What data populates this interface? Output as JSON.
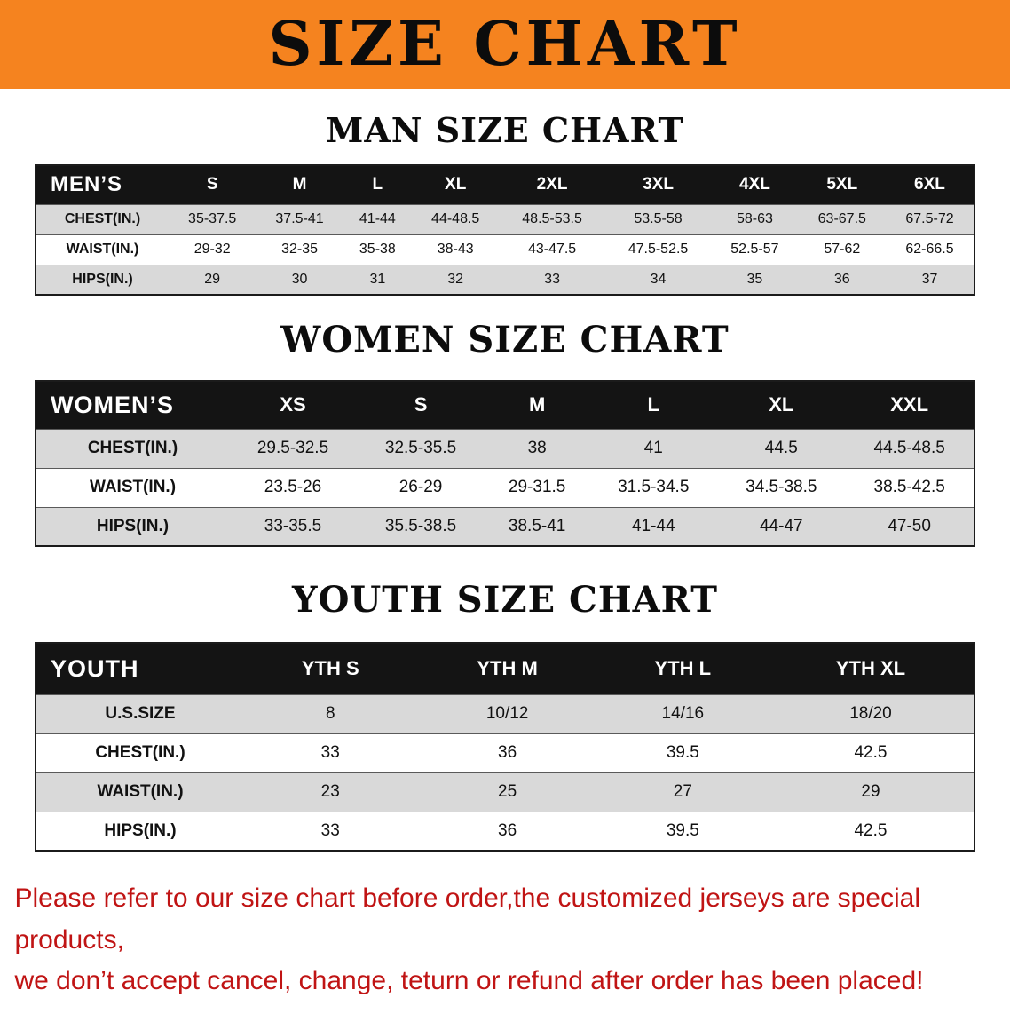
{
  "banner": {
    "title": "SIZE CHART"
  },
  "sections": [
    {
      "id": "men",
      "heading": "MAN SIZE CHART",
      "table": {
        "header": [
          "MEN’S",
          "S",
          "M",
          "L",
          "XL",
          "2XL",
          "3XL",
          "4XL",
          "5XL",
          "6XL"
        ],
        "rows": [
          {
            "label": "CHEST(IN.)",
            "values": [
              "35-37.5",
              "37.5-41",
              "41-44",
              "44-48.5",
              "48.5-53.5",
              "53.5-58",
              "58-63",
              "63-67.5",
              "67.5-72"
            ]
          },
          {
            "label": "WAIST(IN.)",
            "values": [
              "29-32",
              "32-35",
              "35-38",
              "38-43",
              "43-47.5",
              "47.5-52.5",
              "52.5-57",
              "57-62",
              "62-66.5"
            ]
          },
          {
            "label": "HIPS(IN.)",
            "values": [
              "29",
              "30",
              "31",
              "32",
              "33",
              "34",
              "35",
              "36",
              "37"
            ]
          }
        ]
      }
    },
    {
      "id": "women",
      "heading": "WOMEN SIZE CHART",
      "table": {
        "header": [
          "WOMEN’S",
          "XS",
          "S",
          "M",
          "L",
          "XL",
          "XXL"
        ],
        "rows": [
          {
            "label": "CHEST(IN.)",
            "values": [
              "29.5-32.5",
              "32.5-35.5",
              "38",
              "41",
              "44.5",
              "44.5-48.5"
            ]
          },
          {
            "label": "WAIST(IN.)",
            "values": [
              "23.5-26",
              "26-29",
              "29-31.5",
              "31.5-34.5",
              "34.5-38.5",
              "38.5-42.5"
            ]
          },
          {
            "label": "HIPS(IN.)",
            "values": [
              "33-35.5",
              "35.5-38.5",
              "38.5-41",
              "41-44",
              "44-47",
              "47-50"
            ]
          }
        ]
      }
    },
    {
      "id": "youth",
      "heading": "YOUTH SIZE CHART",
      "table": {
        "header": [
          "YOUTH",
          "YTH S",
          "YTH M",
          "YTH L",
          "YTH XL"
        ],
        "rows": [
          {
            "label": "U.S.SIZE",
            "values": [
              "8",
              "10/12",
              "14/16",
              "18/20"
            ]
          },
          {
            "label": "CHEST(IN.)",
            "values": [
              "33",
              "36",
              "39.5",
              "42.5"
            ]
          },
          {
            "label": "WAIST(IN.)",
            "values": [
              "23",
              "25",
              "27",
              "29"
            ]
          },
          {
            "label": "HIPS(IN.)",
            "values": [
              "33",
              "36",
              "39.5",
              "42.5"
            ]
          }
        ]
      }
    }
  ],
  "disclaimer": {
    "line1": "Please refer to our size chart before order,the customized jerseys are special products,",
    "line2": "we don’t accept cancel, change, teturn or refund after order has been placed!"
  },
  "colors": {
    "banner_bg": "#f5831f",
    "header_bg": "#141414",
    "row_shaded": "#d9d9d9",
    "disclaimer_text": "#c01414"
  }
}
